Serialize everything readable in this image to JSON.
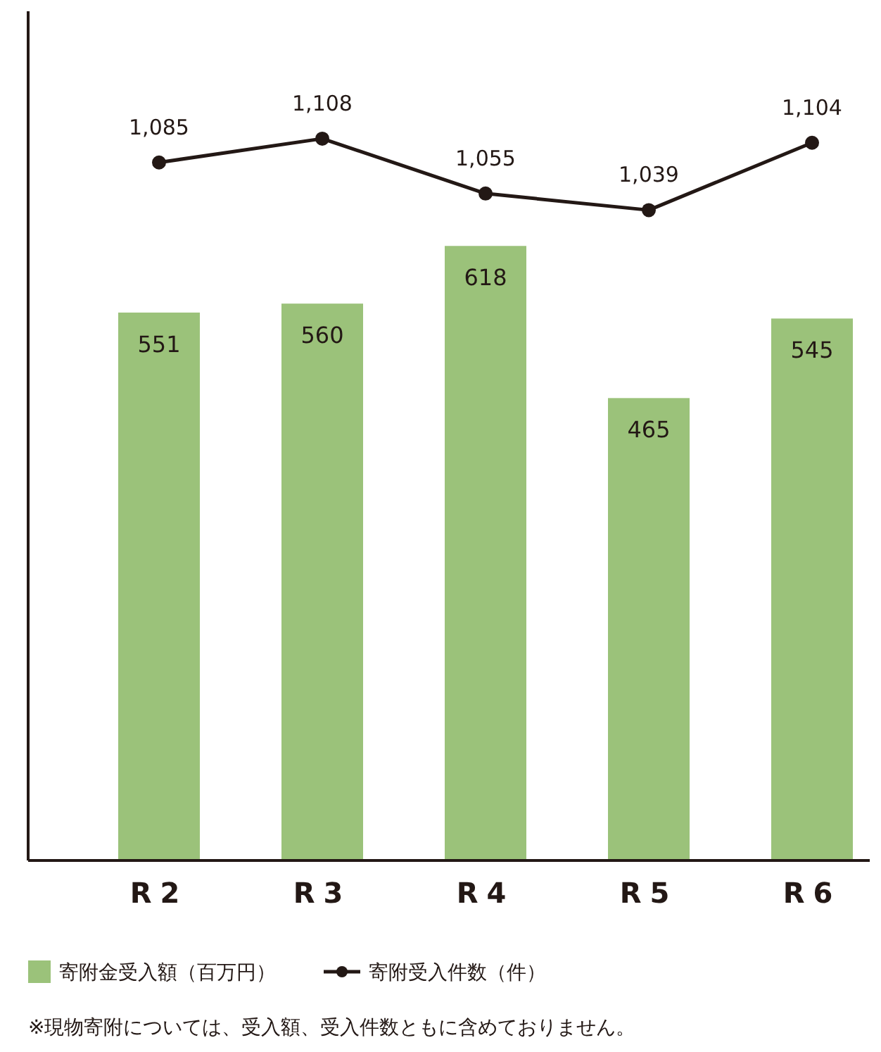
{
  "chart_data": {
    "type": "bar",
    "categories": [
      "R2",
      "R3",
      "R4",
      "R5",
      "R6"
    ],
    "series": [
      {
        "name": "寄附金受入額（百万円）",
        "color": "#9bc27a",
        "values": [
          551,
          560,
          618,
          465,
          545
        ]
      },
      {
        "name": "寄附受入件数（件）",
        "type": "line",
        "axis": "y2",
        "color": "#231815",
        "values": [
          1085,
          1108,
          1055,
          1039,
          1104
        ],
        "value_labels": [
          "1,085",
          "1,108",
          "1,055",
          "1,039",
          "1,104"
        ]
      }
    ],
    "ylim": [
      0,
      854
    ],
    "y2lim": [
      411,
      1231
    ],
    "tick_labels": "x",
    "data_labels": true,
    "legend": "bottom",
    "marker": "circle",
    "line_style": "solid",
    "annotations": [
      "※現物寄附については、受入額、受入件数ともに含めておりません。"
    ]
  }
}
